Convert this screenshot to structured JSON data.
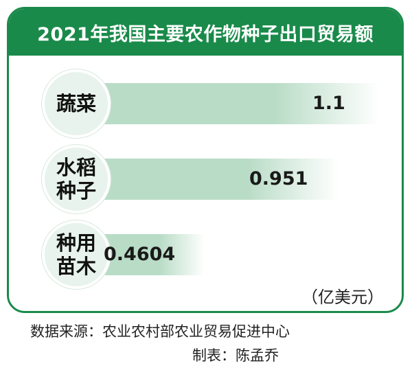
{
  "chart_data": {
    "type": "bar",
    "title": "2021年我国主要农作物种子出口贸易额",
    "categories": [
      "蔬菜",
      "水稻种子",
      "种用苗木"
    ],
    "values": [
      1.1,
      0.951,
      0.4604
    ],
    "value_labels": [
      "1.1",
      "0.951",
      "0.4604"
    ],
    "unit": "（亿美元）",
    "xlim": [
      0,
      1.1
    ],
    "orientation": "horizontal"
  },
  "footer": {
    "source": "数据来源：农业农村部农业贸易促进中心",
    "author": "制表：陈孟乔"
  },
  "colors": {
    "brand": "#1a8a4a",
    "bar_fill": "#b9dcc6",
    "circle": "#e7f3ec"
  }
}
